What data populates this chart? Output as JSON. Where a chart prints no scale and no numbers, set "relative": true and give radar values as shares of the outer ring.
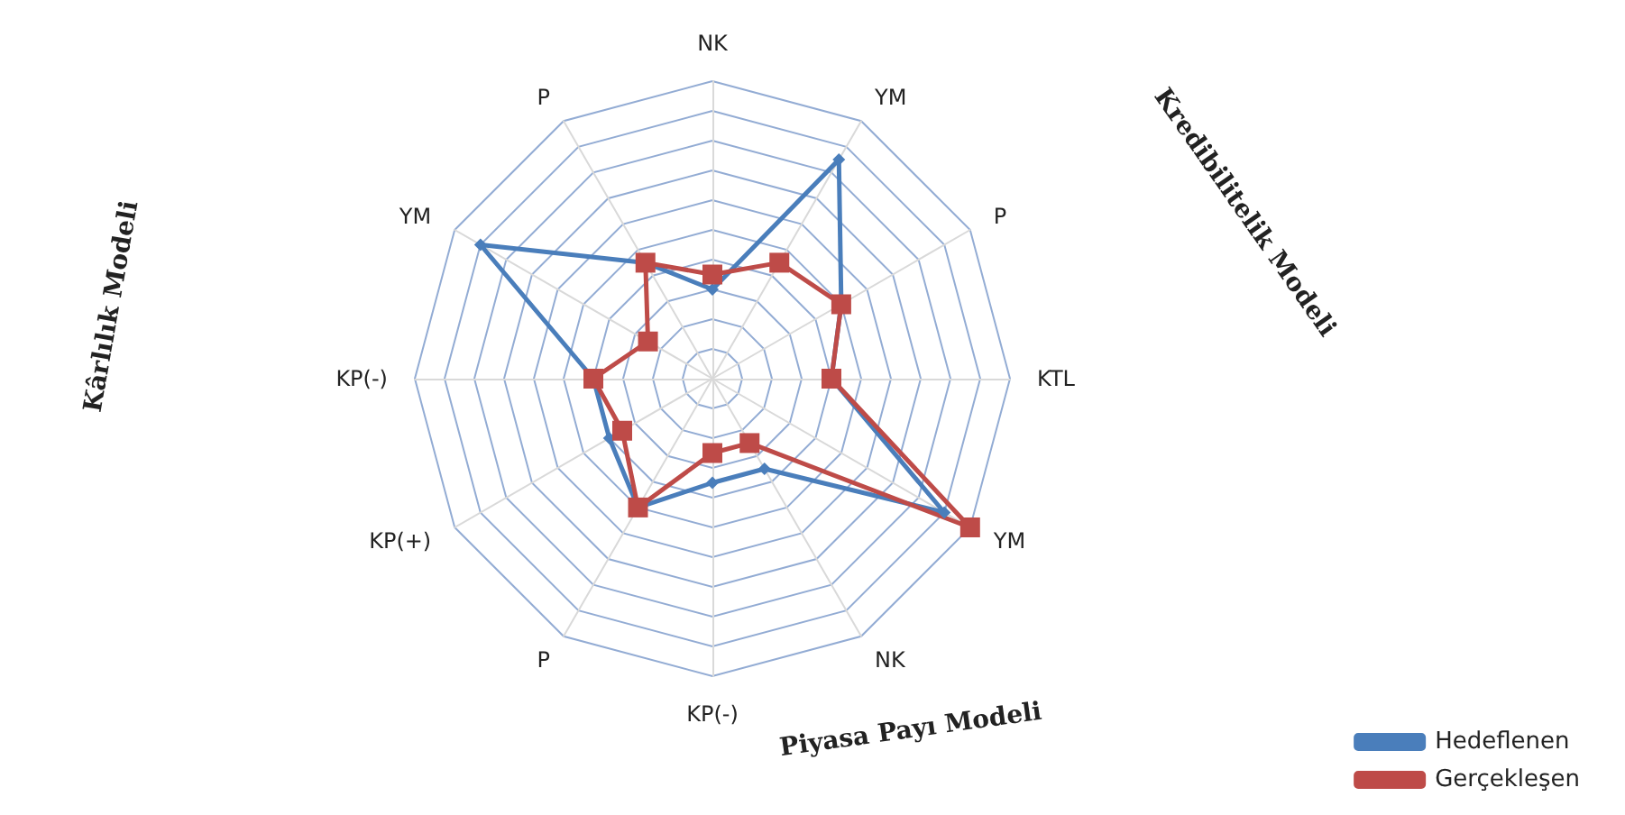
{
  "chart_data": {
    "type": "radar",
    "relative": true,
    "categories": [
      "NK",
      "YM",
      "P",
      "KTL",
      "YM",
      "NK",
      "KP(-)",
      "P",
      "KP(+)",
      "KP(-)",
      "YM",
      "P"
    ],
    "series": [
      {
        "name": "Hedeflenen",
        "color": "#4a7ebb",
        "marker": "diamond",
        "values": [
          0.3,
          0.85,
          0.5,
          0.4,
          0.9,
          0.35,
          0.35,
          0.5,
          0.4,
          0.4,
          0.9,
          0.45
        ]
      },
      {
        "name": "Gerçekleşen",
        "color": "#be4b48",
        "marker": "square",
        "values": [
          0.35,
          0.45,
          0.5,
          0.4,
          1.0,
          0.25,
          0.25,
          0.5,
          0.35,
          0.4,
          0.25,
          0.45
        ]
      }
    ],
    "annotations": [
      "Kredibilitelik Modeli",
      "Kârlılık Modeli",
      "Piyasa Payı Modeli"
    ],
    "legend": "bottom right",
    "grid": true
  }
}
